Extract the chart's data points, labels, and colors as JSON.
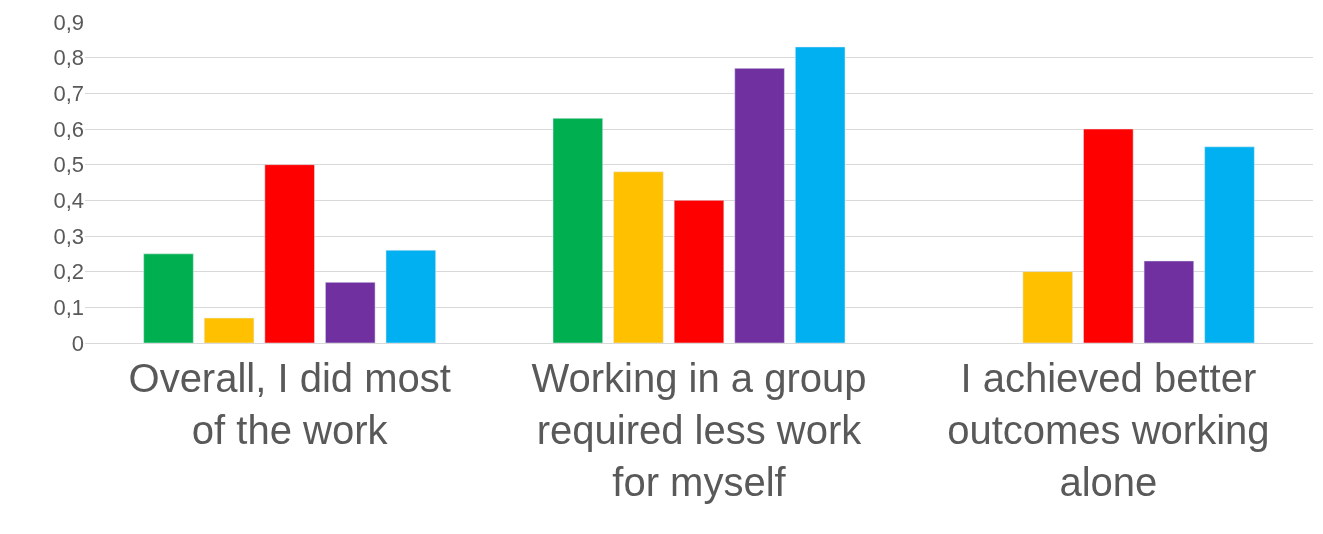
{
  "chart_data": {
    "type": "bar",
    "categories": [
      "Overall, I did most of the work",
      "Working in a group required less work for myself",
      "I achieved better outcomes working alone"
    ],
    "series": [
      {
        "color": "#00b050",
        "values": [
          0.25,
          0.63,
          null
        ]
      },
      {
        "color": "#ffc000",
        "values": [
          0.07,
          0.48,
          0.2
        ]
      },
      {
        "color": "#ff0000",
        "values": [
          0.5,
          0.4,
          0.6
        ]
      },
      {
        "color": "#7030a0",
        "values": [
          0.17,
          0.77,
          0.23
        ]
      },
      {
        "color": "#00b0f0",
        "values": [
          0.26,
          0.83,
          0.55
        ]
      }
    ],
    "ylim": [
      0,
      0.9
    ],
    "yticks": [
      0,
      {
        "value": 0.1,
        "label": "0,1"
      },
      {
        "value": 0.2,
        "label": "0,2"
      },
      {
        "value": 0.3,
        "label": "0,3"
      },
      {
        "value": 0.4,
        "label": "0,4"
      },
      {
        "value": 0.5,
        "label": "0,5"
      },
      {
        "value": 0.6,
        "label": "0,6"
      },
      {
        "value": 0.7,
        "label": "0,7"
      },
      {
        "value": 0.8,
        "label": "0,8"
      },
      {
        "value": 0.9,
        "label": "0,9"
      }
    ],
    "grid": "y"
  }
}
